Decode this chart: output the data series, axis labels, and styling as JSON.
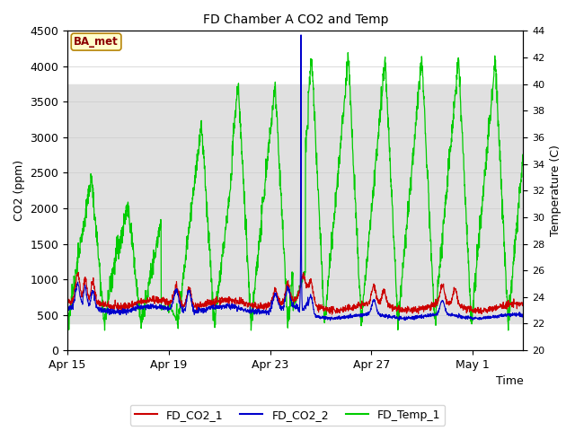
{
  "title": "FD Chamber A CO2 and Temp",
  "xlabel": "Time",
  "ylabel_left": "CO2 (ppm)",
  "ylabel_right": "Temperature (C)",
  "ylim_left": [
    0,
    4500
  ],
  "ylim_right": [
    20,
    44
  ],
  "xlim": [
    0,
    18
  ],
  "xtick_labels": [
    "Apr 15",
    "Apr 19",
    "Apr 23",
    "Apr 27",
    "May 1"
  ],
  "xtick_positions": [
    0,
    4,
    8,
    12,
    16
  ],
  "yticks_left": [
    0,
    500,
    1000,
    1500,
    2000,
    2500,
    3000,
    3500,
    4000,
    4500
  ],
  "yticks_right": [
    20,
    22,
    24,
    26,
    28,
    30,
    32,
    34,
    36,
    38,
    40,
    42,
    44
  ],
  "color_co2_1": "#cc0000",
  "color_co2_2": "#0000cc",
  "color_temp": "#00cc00",
  "band_color": "#e0e0e0",
  "annotation_text": "BA_met",
  "background_color": "#ffffff",
  "legend_labels": [
    "FD_CO2_1",
    "FD_CO2_2",
    "FD_Temp_1"
  ]
}
